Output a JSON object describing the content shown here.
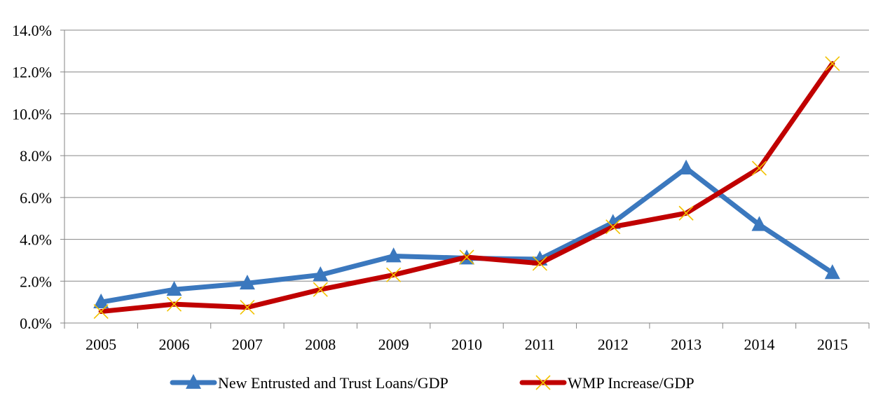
{
  "chart_data": {
    "type": "line",
    "categories": [
      "2005",
      "2006",
      "2007",
      "2008",
      "2009",
      "2010",
      "2011",
      "2012",
      "2013",
      "2014",
      "2015"
    ],
    "series": [
      {
        "name": "New Entrusted and Trust Loans/GDP",
        "values": [
          1.0,
          1.6,
          1.9,
          2.3,
          3.2,
          3.1,
          3.05,
          4.8,
          7.4,
          4.7,
          2.4
        ],
        "color": "#3b78be",
        "marker": "triangle"
      },
      {
        "name": "WMP Increase/GDP",
        "values": [
          0.55,
          0.9,
          0.75,
          1.6,
          2.3,
          3.15,
          2.85,
          4.6,
          5.25,
          7.4,
          12.4
        ],
        "color": "#c00000",
        "marker": "x",
        "marker_color": "#f2c200"
      }
    ],
    "ylim": [
      0,
      14
    ],
    "yticks": [
      "0.0%",
      "2.0%",
      "4.0%",
      "6.0%",
      "8.0%",
      "10.0%",
      "12.0%",
      "14.0%"
    ],
    "grid": "horizontal",
    "legend": "bottom-center",
    "title": "",
    "xlabel": "",
    "ylabel": ""
  }
}
